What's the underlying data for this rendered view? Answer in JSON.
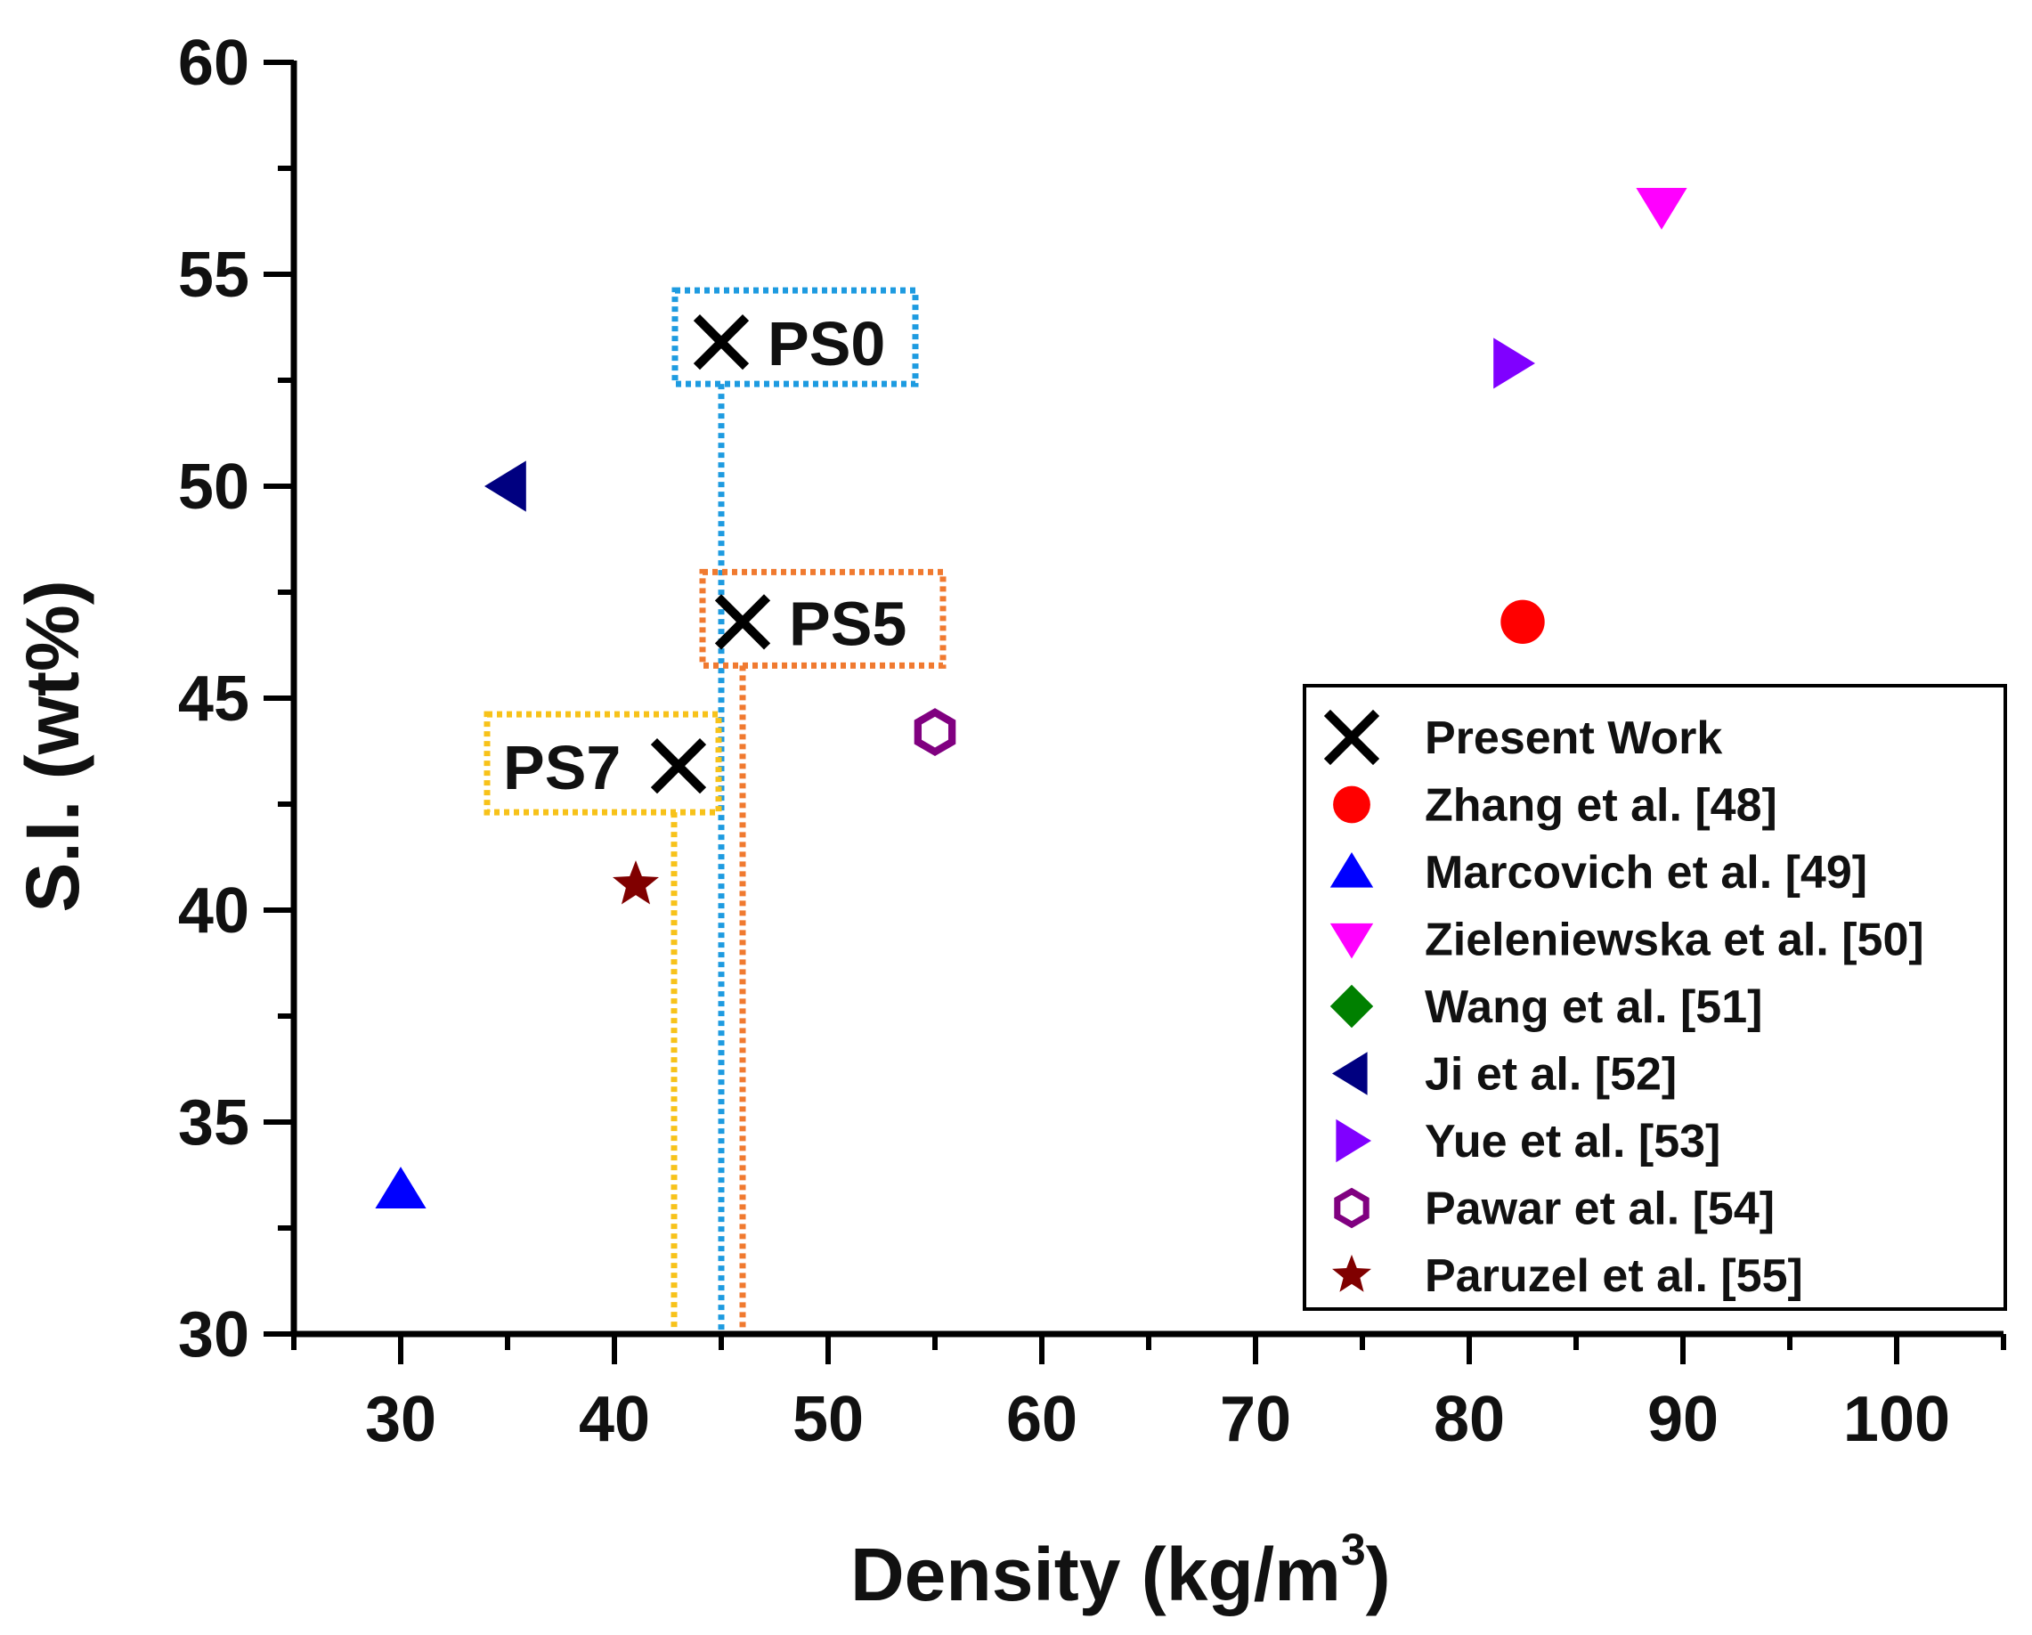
{
  "chart_data": {
    "type": "scatter",
    "xlabel": "Density (kg/m",
    "xlabel_sup": "3",
    "xlabel_suffix": ")",
    "ylabel": "S.I. (wt%)",
    "xlim": [
      25,
      105
    ],
    "ylim": [
      30,
      60
    ],
    "x_ticks": [
      "30",
      "40",
      "50",
      "60",
      "70",
      "80",
      "90",
      "100"
    ],
    "y_ticks": [
      "30",
      "35",
      "40",
      "45",
      "50",
      "55",
      "60"
    ],
    "legend_position": "right",
    "series": [
      {
        "name": "Present Work",
        "marker": "x",
        "color": "#000000",
        "points": [
          {
            "x": 45,
            "y": 53.4,
            "label": "PS0"
          },
          {
            "x": 46,
            "y": 46.8,
            "label": "PS5"
          },
          {
            "x": 43,
            "y": 43.4,
            "label": "PS7"
          }
        ]
      },
      {
        "name": "Zhang et al. [48]",
        "marker": "circle",
        "color": "#ff0000",
        "points": [
          {
            "x": 82.5,
            "y": 46.8
          }
        ]
      },
      {
        "name": "Marcovich et al. [49]",
        "marker": "triangle-up",
        "color": "#0000ff",
        "points": [
          {
            "x": 30,
            "y": 33.4
          }
        ]
      },
      {
        "name": "Zieleniewska et al. [50]",
        "marker": "triangle-down",
        "color": "#ff00ff",
        "points": [
          {
            "x": 89,
            "y": 56.6
          }
        ]
      },
      {
        "name": "Wang et al. [51]",
        "marker": "diamond",
        "color": "#008000",
        "points": []
      },
      {
        "name": "Ji et al. [52]",
        "marker": "triangle-left",
        "color": "#000080",
        "points": [
          {
            "x": 35,
            "y": 50
          }
        ]
      },
      {
        "name": "Yue et al. [53]",
        "marker": "triangle-right",
        "color": "#8000ff",
        "points": [
          {
            "x": 82,
            "y": 52.9
          }
        ]
      },
      {
        "name": "Pawar et al. [54]",
        "marker": "hexagon-open",
        "color": "#800080",
        "points": [
          {
            "x": 55,
            "y": 44.2
          }
        ]
      },
      {
        "name": "Paruzel et al. [55]",
        "marker": "star",
        "color": "#800000",
        "points": [
          {
            "x": 41,
            "y": 40.6
          }
        ]
      }
    ],
    "callouts": [
      {
        "label": "PS0",
        "x": 45,
        "y": 53.4,
        "color": "#1e9be0"
      },
      {
        "label": "PS5",
        "x": 46,
        "y": 46.8,
        "color": "#f07a30"
      },
      {
        "label": "PS7",
        "x": 43,
        "y": 43.4,
        "color": "#f7c21a"
      }
    ]
  }
}
